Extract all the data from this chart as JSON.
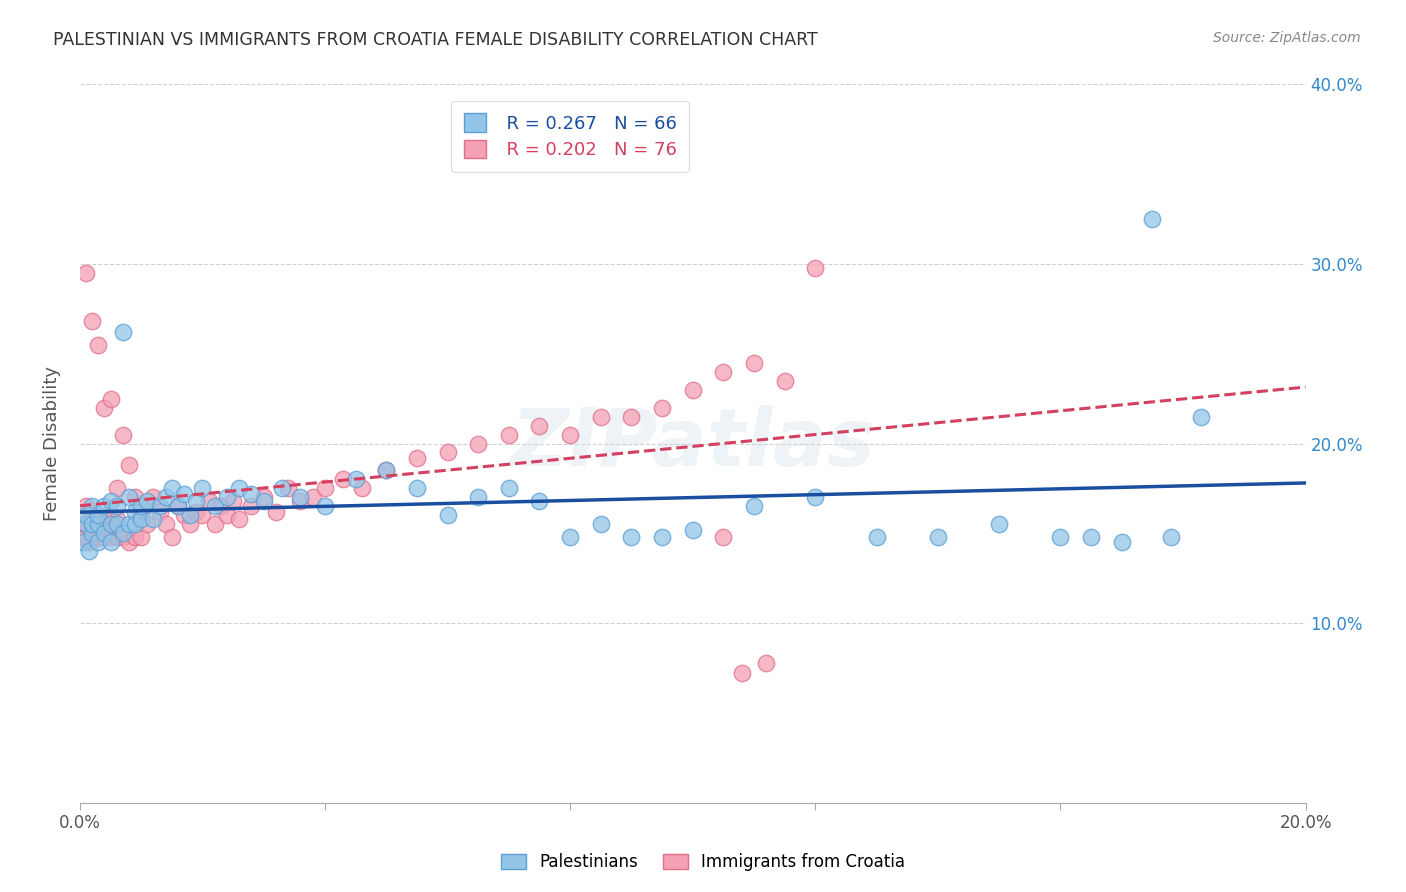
{
  "title": "PALESTINIAN VS IMMIGRANTS FROM CROATIA FEMALE DISABILITY CORRELATION CHART",
  "source": "Source: ZipAtlas.com",
  "ylabel": "Female Disability",
  "xlim": [
    0.0,
    0.2
  ],
  "ylim": [
    0.0,
    0.4
  ],
  "x_tick_positions": [
    0.0,
    0.04,
    0.08,
    0.12,
    0.16,
    0.2
  ],
  "x_tick_labels": [
    "0.0%",
    "",
    "",
    "",
    "",
    "20.0%"
  ],
  "y_tick_positions": [
    0.0,
    0.1,
    0.2,
    0.3,
    0.4
  ],
  "y_tick_labels_right": [
    "",
    "10.0%",
    "20.0%",
    "30.0%",
    "40.0%"
  ],
  "palestinians_color": "#92C5E8",
  "croatia_color": "#F4A0B5",
  "palestinians_edge": "#5A9FD4",
  "croatia_edge": "#E0708A",
  "trend_blue": "#1A4FA0",
  "trend_pink": "#D44060",
  "legend_R_blue": "R = 0.267",
  "legend_N_blue": "N = 66",
  "legend_R_pink": "R = 0.202",
  "legend_N_pink": "N = 76",
  "legend_label_blue": "Palestinians",
  "legend_label_pink": "Immigrants from Croatia",
  "watermark": "ZIPatlas",
  "palestinians_x": [
    0.0005,
    0.001,
    0.001,
    0.0015,
    0.002,
    0.002,
    0.002,
    0.003,
    0.003,
    0.003,
    0.004,
    0.004,
    0.005,
    0.005,
    0.005,
    0.006,
    0.006,
    0.007,
    0.007,
    0.008,
    0.008,
    0.009,
    0.009,
    0.01,
    0.01,
    0.011,
    0.012,
    0.013,
    0.014,
    0.015,
    0.016,
    0.017,
    0.018,
    0.019,
    0.02,
    0.022,
    0.024,
    0.026,
    0.028,
    0.03,
    0.033,
    0.036,
    0.04,
    0.045,
    0.05,
    0.055,
    0.06,
    0.065,
    0.07,
    0.075,
    0.08,
    0.085,
    0.09,
    0.095,
    0.1,
    0.11,
    0.12,
    0.13,
    0.14,
    0.15,
    0.16,
    0.165,
    0.17,
    0.175,
    0.178,
    0.183
  ],
  "palestinians_y": [
    0.145,
    0.155,
    0.16,
    0.14,
    0.15,
    0.155,
    0.165,
    0.145,
    0.155,
    0.16,
    0.15,
    0.165,
    0.145,
    0.155,
    0.168,
    0.155,
    0.165,
    0.15,
    0.262,
    0.155,
    0.17,
    0.162,
    0.155,
    0.158,
    0.165,
    0.168,
    0.158,
    0.165,
    0.17,
    0.175,
    0.165,
    0.172,
    0.16,
    0.168,
    0.175,
    0.165,
    0.17,
    0.175,
    0.172,
    0.168,
    0.175,
    0.17,
    0.165,
    0.18,
    0.185,
    0.175,
    0.16,
    0.17,
    0.175,
    0.168,
    0.148,
    0.155,
    0.148,
    0.148,
    0.152,
    0.165,
    0.17,
    0.148,
    0.148,
    0.155,
    0.148,
    0.148,
    0.145,
    0.325,
    0.148,
    0.215
  ],
  "croatia_x": [
    0.0003,
    0.0005,
    0.0008,
    0.001,
    0.001,
    0.001,
    0.0015,
    0.002,
    0.002,
    0.002,
    0.002,
    0.003,
    0.003,
    0.003,
    0.003,
    0.004,
    0.004,
    0.004,
    0.005,
    0.005,
    0.005,
    0.005,
    0.006,
    0.006,
    0.006,
    0.007,
    0.007,
    0.008,
    0.008,
    0.009,
    0.009,
    0.01,
    0.01,
    0.011,
    0.012,
    0.013,
    0.014,
    0.015,
    0.016,
    0.017,
    0.018,
    0.019,
    0.02,
    0.021,
    0.022,
    0.023,
    0.024,
    0.025,
    0.026,
    0.028,
    0.03,
    0.032,
    0.034,
    0.036,
    0.038,
    0.04,
    0.043,
    0.046,
    0.05,
    0.055,
    0.06,
    0.065,
    0.07,
    0.075,
    0.08,
    0.085,
    0.09,
    0.095,
    0.1,
    0.105,
    0.11,
    0.115,
    0.12,
    0.105,
    0.108,
    0.112
  ],
  "croatia_y": [
    0.148,
    0.155,
    0.148,
    0.155,
    0.165,
    0.295,
    0.145,
    0.148,
    0.155,
    0.16,
    0.268,
    0.148,
    0.155,
    0.255,
    0.148,
    0.148,
    0.155,
    0.22,
    0.148,
    0.155,
    0.16,
    0.225,
    0.148,
    0.158,
    0.175,
    0.148,
    0.205,
    0.145,
    0.188,
    0.148,
    0.17,
    0.148,
    0.162,
    0.155,
    0.17,
    0.162,
    0.155,
    0.148,
    0.165,
    0.16,
    0.155,
    0.162,
    0.16,
    0.168,
    0.155,
    0.165,
    0.16,
    0.168,
    0.158,
    0.165,
    0.17,
    0.162,
    0.175,
    0.168,
    0.17,
    0.175,
    0.18,
    0.175,
    0.185,
    0.192,
    0.195,
    0.2,
    0.205,
    0.21,
    0.205,
    0.215,
    0.215,
    0.22,
    0.23,
    0.24,
    0.245,
    0.235,
    0.298,
    0.148,
    0.072,
    0.078
  ]
}
